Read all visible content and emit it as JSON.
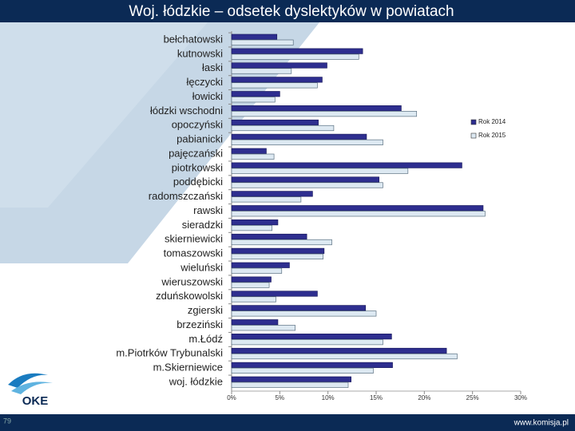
{
  "chart_data": {
    "type": "bar",
    "orientation": "horizontal",
    "title": "Woj. łódzkie – odsetek dyslektyków w powiatach",
    "categories": [
      "bełchatowski",
      "kutnowski",
      "łaski",
      "łęczycki",
      "łowicki",
      "łódzki wschodni",
      "opoczyński",
      "pabianicki",
      "pajęczański",
      "piotrkowski",
      "poddębicki",
      "radomszczański",
      "rawski",
      "sieradzki",
      "skierniewicki",
      "tomaszowski",
      "wieluński",
      "wieruszowski",
      "zduńskowolski",
      "zgierski",
      "brzeziński",
      "m.Łódź",
      "m.Piotrków Trybunalski",
      "m.Skierniewice",
      "woj. łódzkie"
    ],
    "series": [
      {
        "name": "Rok 2014",
        "color": "#2e2e8f",
        "values": [
          4.7,
          13.6,
          9.9,
          9.4,
          5.0,
          17.6,
          9.0,
          14.0,
          3.6,
          23.9,
          15.3,
          8.4,
          26.1,
          4.8,
          7.8,
          9.6,
          6.0,
          4.1,
          8.9,
          13.9,
          4.8,
          16.6,
          22.3,
          16.7,
          12.4
        ]
      },
      {
        "name": "Rok 2015",
        "color": "#dde9f2",
        "values": [
          6.4,
          13.2,
          6.2,
          8.9,
          4.5,
          19.2,
          10.6,
          15.7,
          4.4,
          18.3,
          15.7,
          7.2,
          26.3,
          4.2,
          10.4,
          9.5,
          5.2,
          3.9,
          4.6,
          15.0,
          6.6,
          15.7,
          23.4,
          14.7,
          12.1
        ]
      }
    ],
    "xlim": [
      0,
      30
    ],
    "xticks": [
      {
        "value": 0,
        "label": "0%"
      },
      {
        "value": 5,
        "label": "5%"
      },
      {
        "value": 10,
        "label": "10%"
      },
      {
        "value": 15,
        "label": "15%"
      },
      {
        "value": 20,
        "label": "20%"
      },
      {
        "value": 25,
        "label": "25%"
      },
      {
        "value": 30,
        "label": "30%"
      }
    ],
    "legend": "right"
  },
  "footer": {
    "url": "www.komisja.pl",
    "slide_number": "79",
    "logo": "OKE"
  }
}
